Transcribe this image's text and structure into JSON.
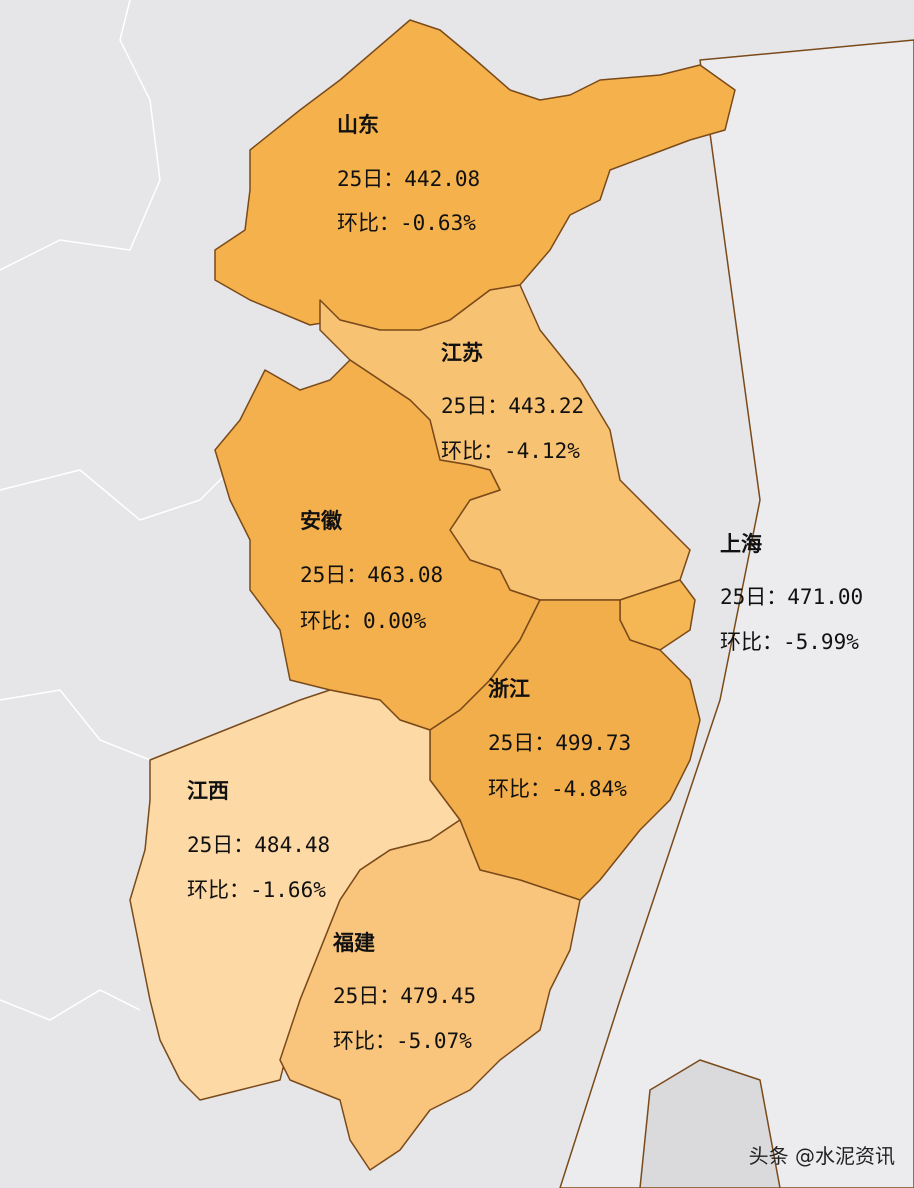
{
  "regions": [
    {
      "name": "山东",
      "price": "25日：442.08",
      "change": "环比：-0.63%"
    },
    {
      "name": "江苏",
      "price": "25日：443.22",
      "change": "环比：-4.12%"
    },
    {
      "name": "安徽",
      "price": "25日：463.08",
      "change": "环比：0.00%"
    },
    {
      "name": "上海",
      "price": "25日：471.00",
      "change": "环比：-5.99%"
    },
    {
      "name": "浙江",
      "price": "25日：499.73",
      "change": "环比：-4.84%"
    },
    {
      "name": "江西",
      "price": "25日：484.48",
      "change": "环比：-1.66%"
    },
    {
      "name": "福建",
      "price": "25日：479.45",
      "change": "环比：-5.07%"
    }
  ],
  "watermark": "头条 @水泥资讯"
}
